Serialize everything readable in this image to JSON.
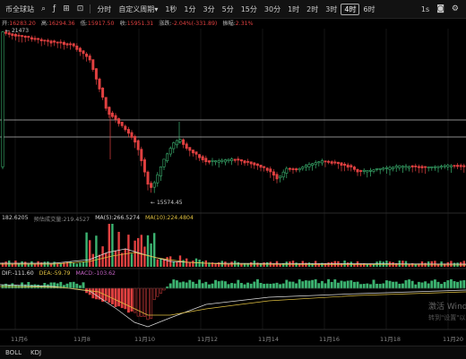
{
  "toolbar": {
    "title": "币全球站",
    "chart_type_label": "分时",
    "custom_period_label": "自定义周期",
    "periods": [
      "1秒",
      "1分",
      "3分",
      "5分",
      "15分",
      "30分",
      "1时",
      "2时",
      "3时",
      "4时",
      "6时"
    ],
    "active_period": "4时",
    "right_items": [
      "1s"
    ]
  },
  "ohlc": {
    "open_label": "开:",
    "open": "16283.20",
    "high_label": "高:",
    "high": "16294.36",
    "low_label": "低:",
    "low": "15917.50",
    "close_label": "收:",
    "close": "15951.31",
    "change_label": "涨跌:",
    "change": "-2.04%(-331.89)",
    "amp_label": "振幅:",
    "amp": "2.31%"
  },
  "price_labels": {
    "high_marker": "21473",
    "low_marker": "15574.45"
  },
  "volume_ind": {
    "vol": "182.6205",
    "forecast": "预估成交量:219.4527",
    "ma5": "MA(5):266.5274",
    "ma10": "MA(10):224.4804"
  },
  "macd_ind": {
    "dif": "DIF:-111.60",
    "dea": "DEA:-59.79",
    "macd": "MACD:-103.62"
  },
  "x_labels": [
    "11月6",
    "11月8",
    "11月10",
    "11月12",
    "11月14",
    "11月16",
    "11月18",
    "11月20"
  ],
  "bottom": {
    "items": [
      "BOLL",
      "KDJ"
    ]
  },
  "watermark": {
    "line1": "激活 Wind",
    "line2": "转到\"设置\"以"
  },
  "colors": {
    "up": "#3cb371",
    "down": "#e04040",
    "bg": "#000000"
  }
}
